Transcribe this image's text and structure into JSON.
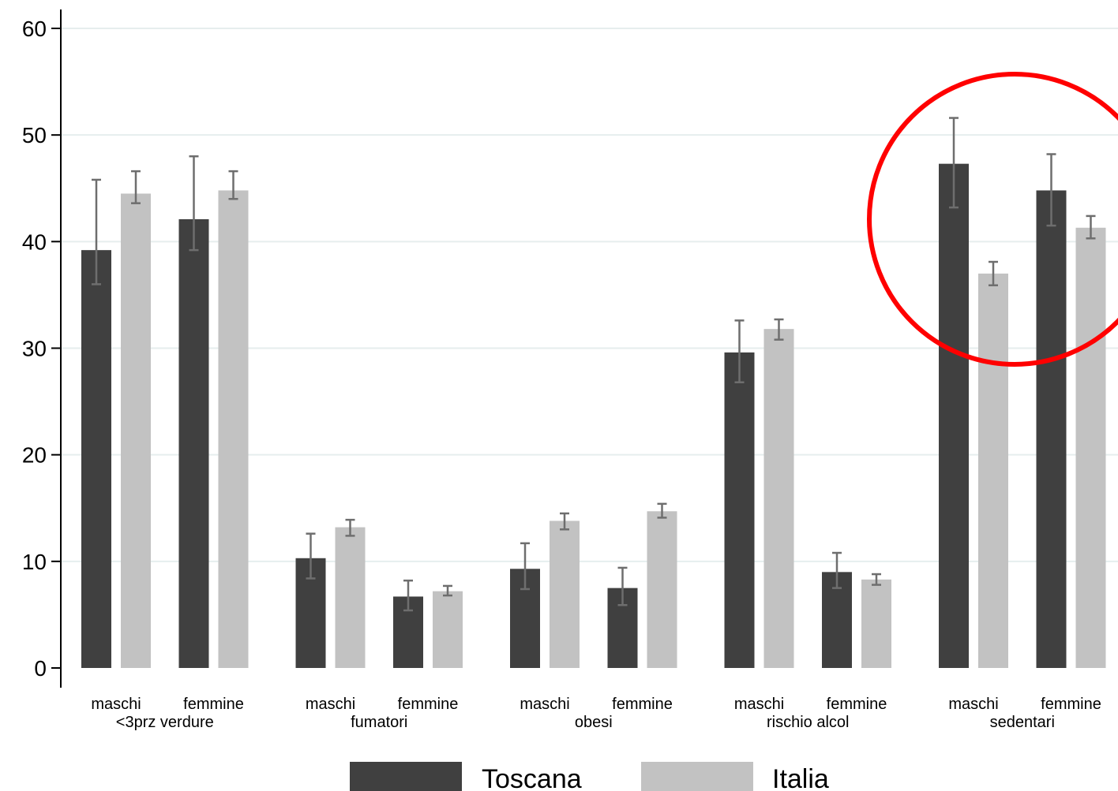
{
  "chart_data": {
    "type": "bar",
    "ylim": [
      0,
      60
    ],
    "yticks": [
      "0",
      "10",
      "20",
      "30",
      "40",
      "50",
      "60"
    ],
    "grid": true,
    "legend_placement": "bottom",
    "colors": {
      "toscana": "#404040",
      "italia": "#c2c2c2",
      "errorbar": "#6e6e6e",
      "grid": "#e6eeee",
      "highlight": "#ff0000"
    },
    "groups": [
      {
        "label": "<3prz verdure",
        "subgroups": [
          {
            "label": "maschi",
            "toscana": {
              "value": 39.2,
              "lo": 36.0,
              "hi": 45.8
            },
            "italia": {
              "value": 44.5,
              "lo": 43.6,
              "hi": 46.6
            }
          },
          {
            "label": "femmine",
            "toscana": {
              "value": 42.1,
              "lo": 39.2,
              "hi": 48.0
            },
            "italia": {
              "value": 44.8,
              "lo": 44.0,
              "hi": 46.6
            }
          }
        ]
      },
      {
        "label": "fumatori",
        "subgroups": [
          {
            "label": "maschi",
            "toscana": {
              "value": 10.3,
              "lo": 8.4,
              "hi": 12.6
            },
            "italia": {
              "value": 13.2,
              "lo": 12.4,
              "hi": 13.9
            }
          },
          {
            "label": "femmine",
            "toscana": {
              "value": 6.7,
              "lo": 5.4,
              "hi": 8.2
            },
            "italia": {
              "value": 7.2,
              "lo": 6.8,
              "hi": 7.7
            }
          }
        ]
      },
      {
        "label": "obesi",
        "subgroups": [
          {
            "label": "maschi",
            "toscana": {
              "value": 9.3,
              "lo": 7.4,
              "hi": 11.7
            },
            "italia": {
              "value": 13.8,
              "lo": 13.0,
              "hi": 14.5
            }
          },
          {
            "label": "femmine",
            "toscana": {
              "value": 7.5,
              "lo": 5.9,
              "hi": 9.4
            },
            "italia": {
              "value": 14.7,
              "lo": 14.1,
              "hi": 15.4
            }
          }
        ]
      },
      {
        "label": "rischio alcol",
        "subgroups": [
          {
            "label": "maschi",
            "toscana": {
              "value": 29.6,
              "lo": 26.8,
              "hi": 32.6
            },
            "italia": {
              "value": 31.8,
              "lo": 30.8,
              "hi": 32.7
            }
          },
          {
            "label": "femmine",
            "toscana": {
              "value": 9.0,
              "lo": 7.5,
              "hi": 10.8
            },
            "italia": {
              "value": 8.3,
              "lo": 7.8,
              "hi": 8.8
            }
          }
        ]
      },
      {
        "label": "sedentari",
        "subgroups": [
          {
            "label": "maschi",
            "toscana": {
              "value": 47.3,
              "lo": 43.2,
              "hi": 51.6
            },
            "italia": {
              "value": 37.0,
              "lo": 35.9,
              "hi": 38.1
            }
          },
          {
            "label": "femmine",
            "toscana": {
              "value": 44.8,
              "lo": 41.5,
              "hi": 48.2
            },
            "italia": {
              "value": 41.3,
              "lo": 40.3,
              "hi": 42.4
            }
          }
        ]
      }
    ],
    "legend": [
      {
        "key": "toscana",
        "label": "Toscana"
      },
      {
        "key": "italia",
        "label": "Italia"
      }
    ],
    "annotation": {
      "type": "circle",
      "highlights": "sedentari"
    }
  }
}
